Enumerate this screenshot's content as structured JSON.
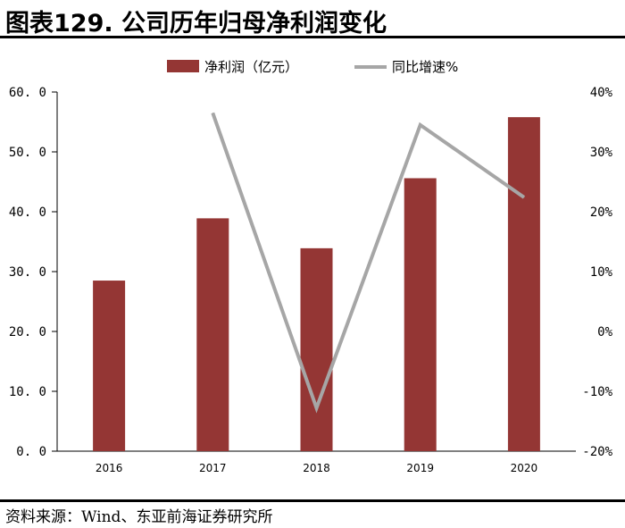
{
  "header": {
    "title": "图表129. 公司历年归母净利润变化"
  },
  "footer": {
    "source": "资料来源：Wind、东亚前海证券研究所"
  },
  "chart_data": {
    "type": "bar",
    "title": "公司历年归母净利润变化",
    "categories": [
      "2016",
      "2017",
      "2018",
      "2019",
      "2020"
    ],
    "series": [
      {
        "name": "净利润（亿元）",
        "kind": "bar",
        "axis": "left",
        "values": [
          28.5,
          38.9,
          33.9,
          45.6,
          55.8
        ],
        "color": "#943634"
      },
      {
        "name": "同比增速%",
        "kind": "line",
        "axis": "right",
        "values": [
          null,
          36.5,
          -12.8,
          34.5,
          22.4
        ],
        "color": "#A6A6A6"
      }
    ],
    "left_axis": {
      "ylim": [
        0,
        60
      ],
      "ticks": [
        "0. 0",
        "10. 0",
        "20. 0",
        "30. 0",
        "40. 0",
        "50. 0",
        "60. 0"
      ]
    },
    "right_axis": {
      "ylim": [
        -20,
        40
      ],
      "ticks": [
        "-20%",
        "-10%",
        "0%",
        "10%",
        "20%",
        "30%",
        "40%"
      ]
    },
    "legend": {
      "placement": "top-center"
    }
  }
}
